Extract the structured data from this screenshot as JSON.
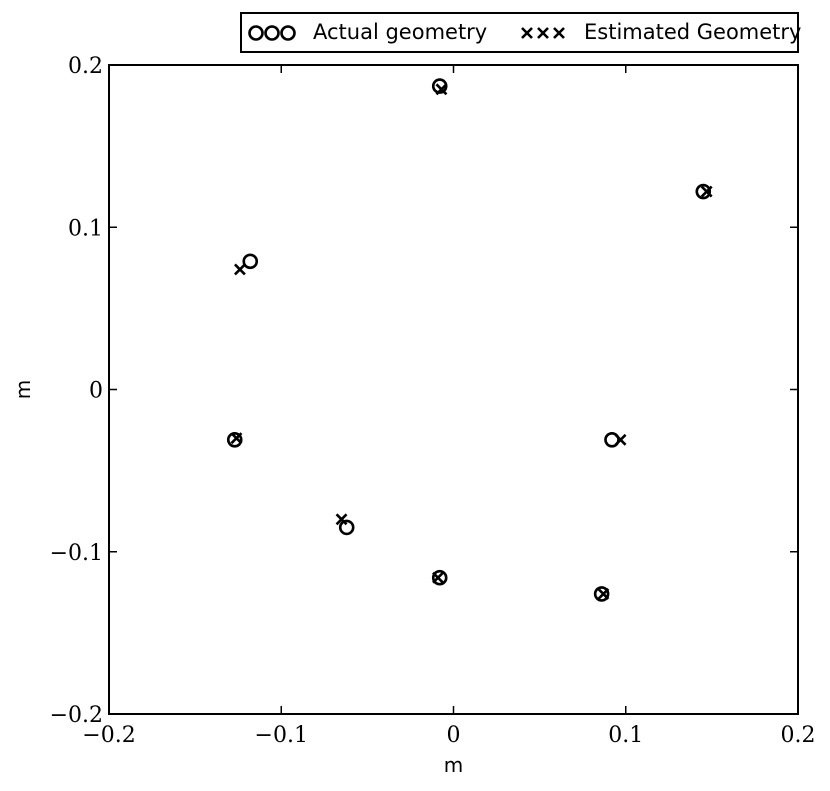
{
  "chart_data": {
    "type": "scatter",
    "title": "",
    "xlabel": "m",
    "ylabel": "m",
    "xlim": [
      -0.2,
      0.2
    ],
    "ylim": [
      -0.2,
      0.2
    ],
    "xticks": [
      -0.2,
      -0.1,
      0,
      0.1,
      0.2
    ],
    "yticks": [
      -0.2,
      -0.1,
      0,
      0.1,
      0.2
    ],
    "xtick_labels": [
      "−0.2",
      "−0.1",
      "0",
      "0.1",
      "0.2"
    ],
    "ytick_labels": [
      "−0.2",
      "−0.1",
      "0",
      "0.1",
      "0.2"
    ],
    "grid": false,
    "legend": "top-right, outside above axes",
    "series": [
      {
        "name": "Actual geometry",
        "marker": "circle",
        "color": "#000000",
        "points": [
          {
            "x": -0.008,
            "y": 0.187
          },
          {
            "x": 0.145,
            "y": 0.122
          },
          {
            "x": -0.118,
            "y": 0.079
          },
          {
            "x": -0.127,
            "y": -0.031
          },
          {
            "x": 0.092,
            "y": -0.031
          },
          {
            "x": -0.062,
            "y": -0.085
          },
          {
            "x": -0.008,
            "y": -0.116
          },
          {
            "x": 0.086,
            "y": -0.126
          }
        ]
      },
      {
        "name": "Estimated Geometry",
        "marker": "x",
        "color": "#000000",
        "points": [
          {
            "x": -0.007,
            "y": 0.185
          },
          {
            "x": 0.147,
            "y": 0.122
          },
          {
            "x": -0.124,
            "y": 0.074
          },
          {
            "x": -0.126,
            "y": -0.03
          },
          {
            "x": 0.097,
            "y": -0.031
          },
          {
            "x": -0.065,
            "y": -0.08
          },
          {
            "x": -0.009,
            "y": -0.116
          },
          {
            "x": 0.087,
            "y": -0.126
          }
        ]
      }
    ]
  }
}
